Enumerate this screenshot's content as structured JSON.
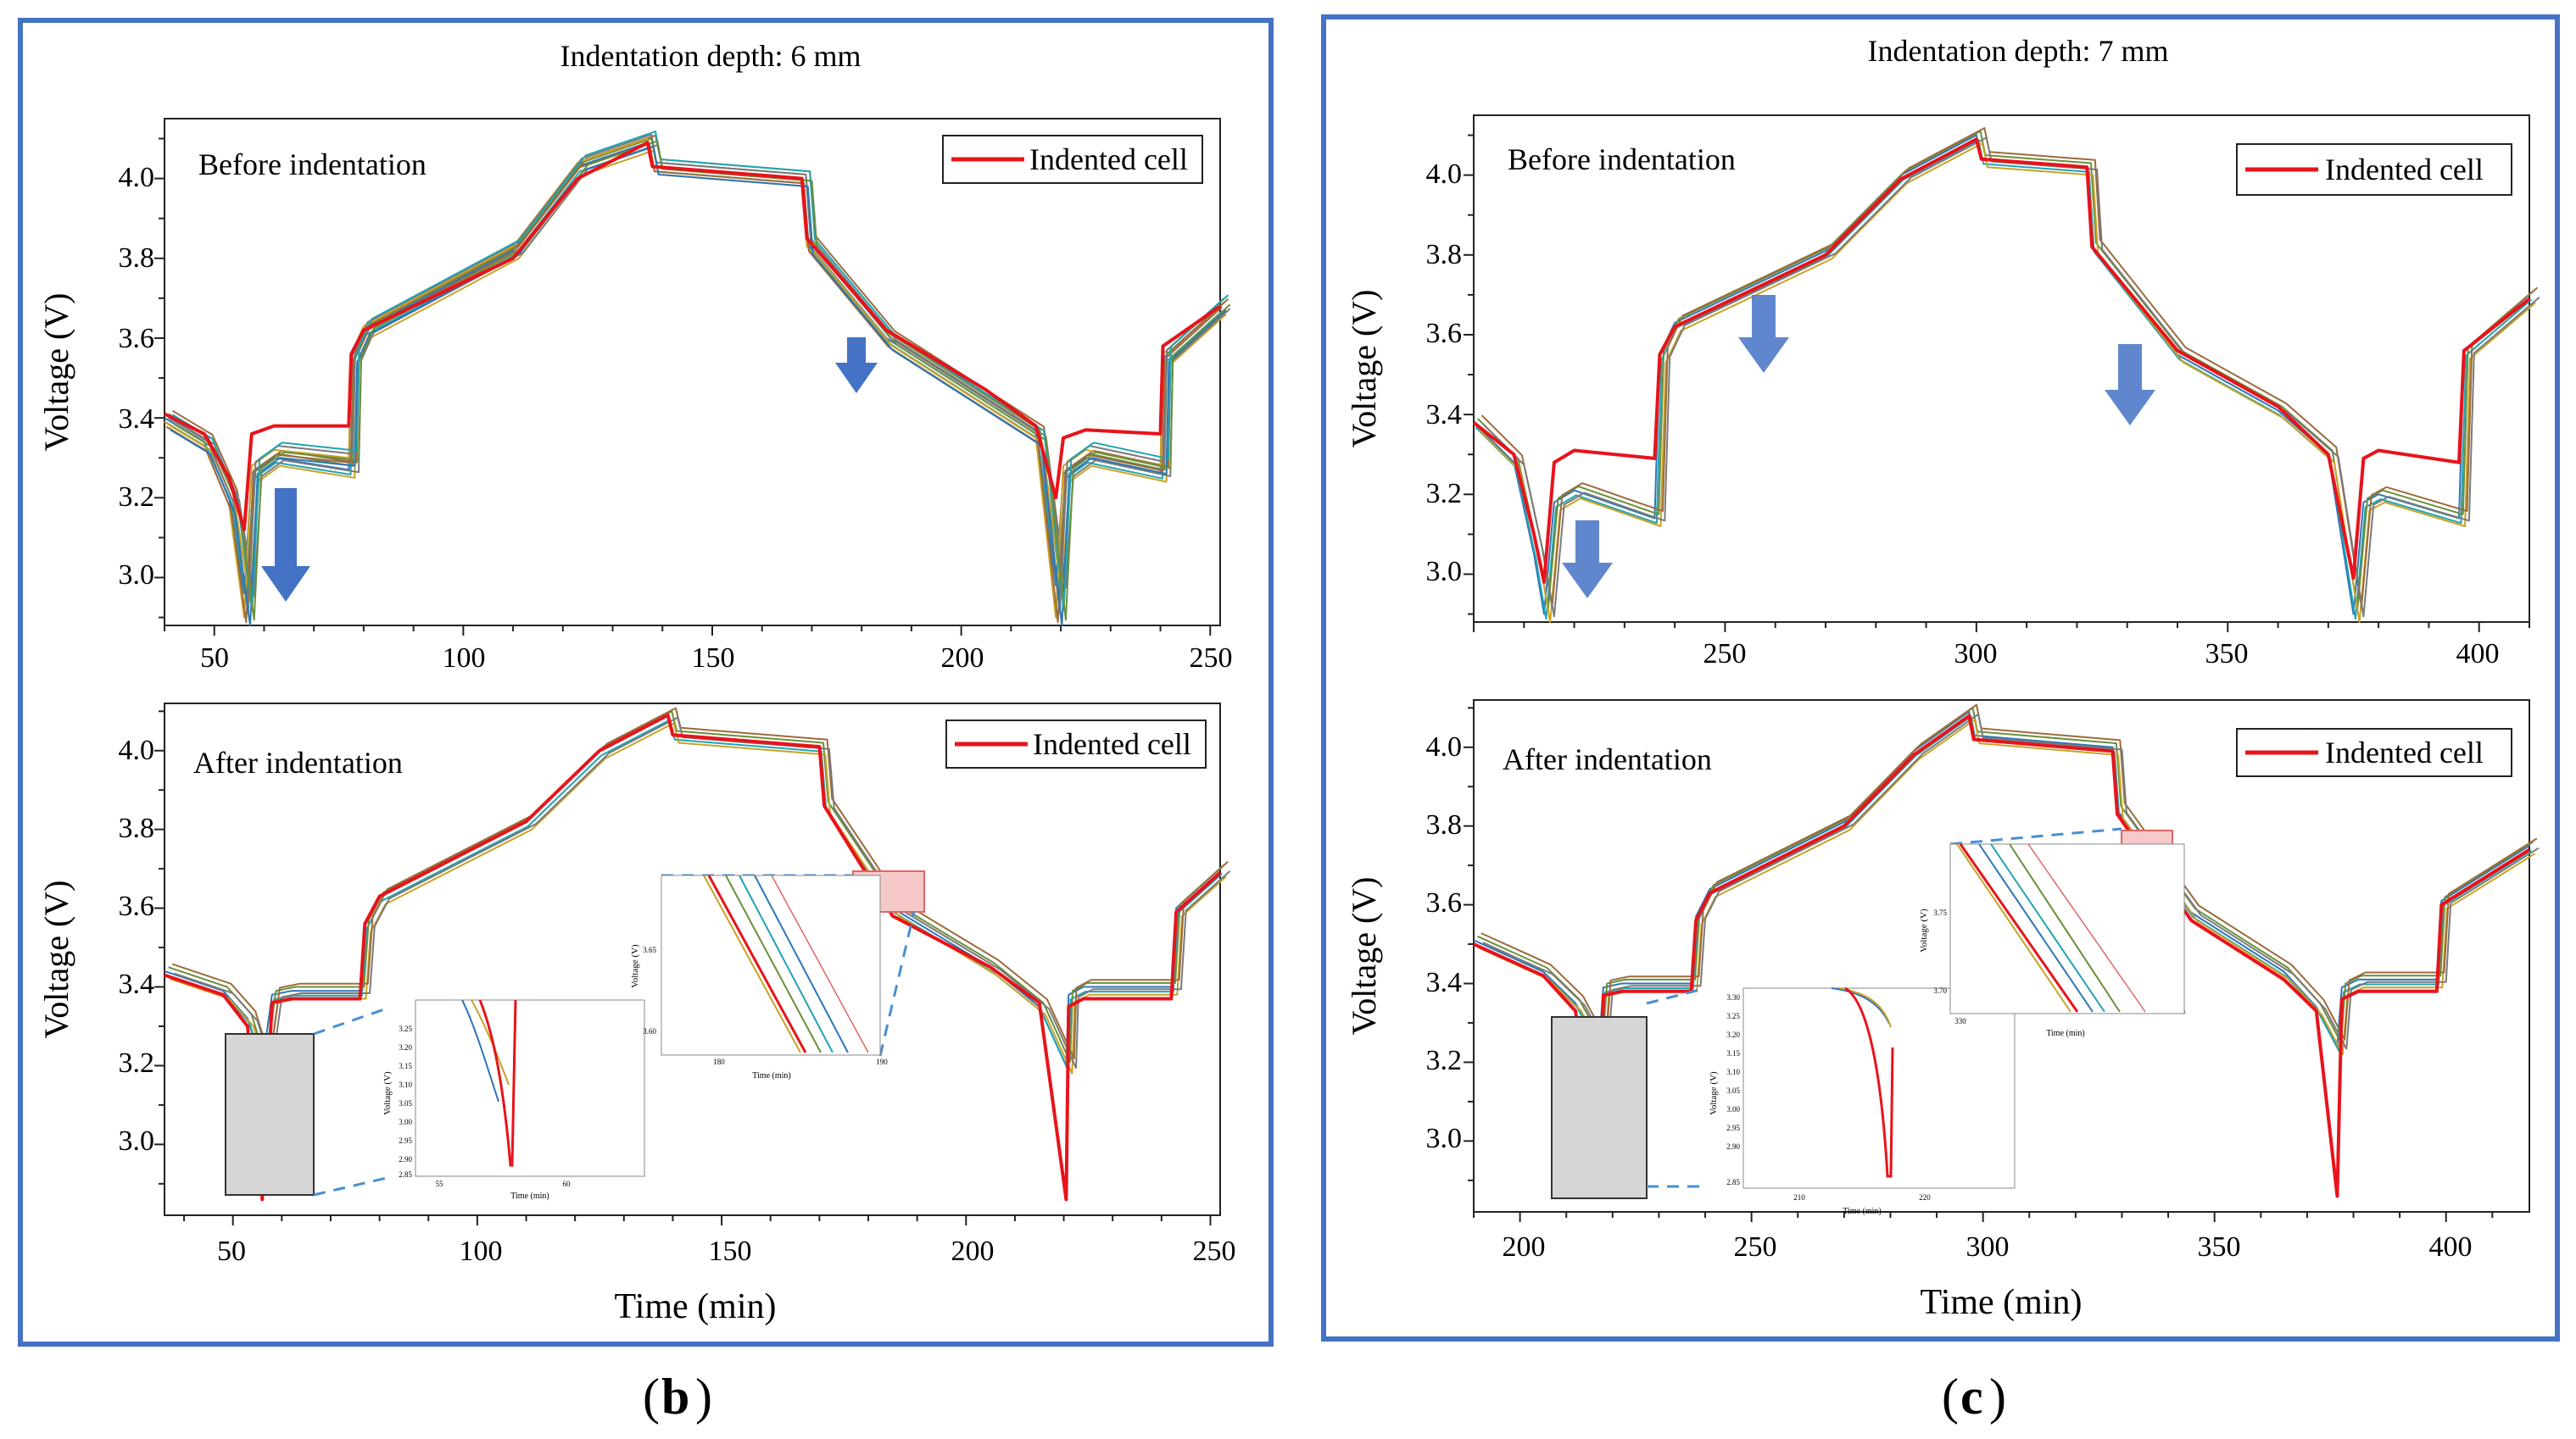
{
  "figure": {
    "series_colors": [
      "#2e75b6",
      "#21a3b3",
      "#6a8f3a",
      "#c9a227",
      "#9c6b3a",
      "#7a7a7a"
    ],
    "indented_color": "#e8131b",
    "panel_border_color": "#4472c4",
    "arrow_color": "#4472c4",
    "inset_box_gray": "#d6d6d6",
    "inset_box_red": "#f6c9c9"
  },
  "panels": [
    {
      "id": "b",
      "title": "Indentation depth: 6 mm",
      "label_open": "(",
      "label_letter": "b",
      "label_close": ")",
      "xlabel": "Time (min)",
      "charts": [
        {
          "annotation": "Before indentation",
          "legend": "Indented cell",
          "ylabel": "Voltage (V)",
          "xticks": [
            "50",
            "100",
            "150",
            "200",
            "250"
          ],
          "yticks": [
            "3.0",
            "3.2",
            "3.4",
            "3.6",
            "3.8",
            "4.0"
          ]
        },
        {
          "annotation": "After indentation",
          "legend": "Indented cell",
          "ylabel": "Voltage (V)",
          "xticks": [
            "50",
            "100",
            "150",
            "200",
            "250"
          ],
          "yticks": [
            "3.0",
            "3.2",
            "3.4",
            "3.6",
            "3.8",
            "4.0"
          ],
          "inset1": {
            "ylabel": "Voltage (V)",
            "xlabel": "Time (min)",
            "yticks": [
              "3.25",
              "3.20",
              "3.15",
              "3.10",
              "3.05",
              "3.00",
              "2.95",
              "2.90",
              "2.85"
            ],
            "xticks": [
              "55",
              "60"
            ]
          },
          "inset2": {
            "ylabel": "Voltage (V)",
            "xlabel": "Time (min)",
            "yticks": [
              "3.65",
              "3.60"
            ],
            "xticks": [
              "180",
              "190"
            ]
          }
        }
      ]
    },
    {
      "id": "c",
      "title": "Indentation depth: 7 mm",
      "label_open": "(",
      "label_letter": "c",
      "label_close": ")",
      "xlabel": "Time (min)",
      "charts": [
        {
          "annotation": "Before indentation",
          "legend": "Indented cell",
          "ylabel": "Voltage (V)",
          "xticks": [
            "250",
            "300",
            "350",
            "400"
          ],
          "yticks": [
            "3.0",
            "3.2",
            "3.4",
            "3.6",
            "3.8",
            "4.0"
          ]
        },
        {
          "annotation": "After indentation",
          "legend": "Indented cell",
          "ylabel": "Voltage (V)",
          "xticks": [
            "200",
            "250",
            "300",
            "350",
            "400"
          ],
          "yticks": [
            "3.0",
            "3.2",
            "3.4",
            "3.6",
            "3.8",
            "4.0"
          ],
          "inset1": {
            "ylabel": "Voltage (V)",
            "xlabel": "Time (min)",
            "yticks": [
              "3.30",
              "3.25",
              "3.20",
              "3.15",
              "3.10",
              "3.05",
              "3.00",
              "2.95",
              "2.90",
              "2.85"
            ],
            "xticks": [
              "210",
              "220"
            ]
          },
          "inset2": {
            "ylabel": "Voltage (V)",
            "xlabel": "Time (min)",
            "yticks": [
              "3.75",
              "3.70"
            ],
            "xticks": [
              "330"
            ]
          }
        }
      ]
    }
  ],
  "chart_data": [
    {
      "type": "line",
      "panel": "b",
      "subplot": "Before indentation",
      "title": "Indentation depth: 6 mm",
      "xlabel": "Time (min)",
      "ylabel": "Voltage (V)",
      "xlim": [
        40,
        252
      ],
      "ylim": [
        2.88,
        4.15
      ],
      "legend": [
        "Indented cell"
      ],
      "indented_cell": {
        "x": [
          40,
          48,
          53,
          56,
          57.5,
          62,
          77,
          77.5,
          80,
          110,
          123,
          137,
          138,
          168,
          169,
          185,
          205,
          215,
          219,
          220.5,
          225,
          240,
          240.5,
          252
        ],
        "y": [
          3.41,
          3.36,
          3.25,
          3.12,
          3.36,
          3.38,
          3.38,
          3.56,
          3.62,
          3.8,
          4.0,
          4.09,
          4.03,
          4.0,
          3.85,
          3.62,
          3.47,
          3.38,
          3.2,
          3.35,
          3.37,
          3.36,
          3.58,
          3.68
        ]
      },
      "healthy_cells": [
        {
          "x": [
            40,
            48,
            53,
            56,
            57.5,
            62,
            77,
            77.5,
            80,
            110,
            123,
            137,
            138,
            168,
            169,
            185,
            205,
            215,
            219,
            220.5,
            225,
            240,
            240.5,
            252
          ],
          "y": [
            3.4,
            3.34,
            3.2,
            2.96,
            3.26,
            3.3,
            3.27,
            3.55,
            3.62,
            3.82,
            4.03,
            4.09,
            4.03,
            4.0,
            3.84,
            3.6,
            3.44,
            3.36,
            2.98,
            3.26,
            3.3,
            3.26,
            3.55,
            3.68
          ]
        },
        {
          "x": [
            40,
            48,
            53,
            56,
            57.5,
            62,
            77,
            77.5,
            80,
            110,
            123,
            137,
            138,
            168,
            169,
            185,
            205,
            215,
            219,
            220.5,
            225,
            240,
            240.5,
            252
          ],
          "y": [
            3.39,
            3.33,
            3.18,
            2.9,
            3.28,
            3.32,
            3.3,
            3.56,
            3.63,
            3.83,
            4.04,
            4.1,
            4.03,
            4.0,
            3.83,
            3.59,
            3.43,
            3.35,
            2.9,
            3.28,
            3.32,
            3.28,
            3.56,
            3.69
          ]
        }
      ]
    },
    {
      "type": "line",
      "panel": "b",
      "subplot": "After indentation",
      "title": "Indentation depth: 6 mm",
      "xlabel": "Time (min)",
      "ylabel": "Voltage (V)",
      "xlim": [
        36,
        252
      ],
      "ylim": [
        2.82,
        4.12
      ],
      "legend": [
        "Indented cell"
      ],
      "indented_cell": {
        "x": [
          36,
          48,
          53,
          56,
          58,
          62,
          76,
          77,
          80,
          110,
          125,
          139,
          140,
          170,
          171,
          185,
          205,
          215,
          220.5,
          221,
          224,
          242,
          243,
          252
        ],
        "y": [
          3.43,
          3.38,
          3.3,
          2.86,
          3.36,
          3.37,
          3.37,
          3.56,
          3.63,
          3.82,
          4.0,
          4.09,
          4.04,
          4.01,
          3.86,
          3.58,
          3.45,
          3.36,
          2.86,
          3.35,
          3.37,
          3.37,
          3.59,
          3.69
        ]
      },
      "healthy_cells": [
        {
          "x": [
            36,
            48,
            53,
            56,
            58,
            62,
            76,
            77,
            80,
            110,
            125,
            139,
            140,
            170,
            171,
            185,
            205,
            215,
            220.5,
            221,
            224,
            242,
            243,
            252
          ],
          "y": [
            3.44,
            3.39,
            3.32,
            3.2,
            3.38,
            3.39,
            3.39,
            3.56,
            3.63,
            3.82,
            4.0,
            4.09,
            4.04,
            4.01,
            3.86,
            3.6,
            3.45,
            3.35,
            3.2,
            3.38,
            3.4,
            3.4,
            3.6,
            3.7
          ]
        }
      ]
    },
    {
      "type": "line",
      "panel": "c",
      "subplot": "Before indentation",
      "title": "Indentation depth: 7 mm",
      "xlabel": "Time (min)",
      "ylabel": "Voltage (V)",
      "xlim": [
        200,
        410
      ],
      "ylim": [
        2.88,
        4.15
      ],
      "legend": [
        "Indented cell"
      ],
      "indented_cell": {
        "x": [
          200,
          208,
          212,
          214,
          216,
          220,
          236,
          237,
          240,
          270,
          285,
          300,
          301,
          322,
          323,
          340,
          360,
          370,
          375,
          377,
          380,
          396,
          397,
          410
        ],
        "y": [
          3.38,
          3.3,
          3.1,
          2.98,
          3.28,
          3.31,
          3.29,
          3.55,
          3.62,
          3.8,
          3.99,
          4.09,
          4.04,
          4.02,
          3.82,
          3.56,
          3.42,
          3.3,
          2.99,
          3.29,
          3.31,
          3.28,
          3.56,
          3.69
        ]
      },
      "healthy_cells": [
        {
          "x": [
            200,
            208,
            212,
            214,
            216,
            220,
            236,
            237,
            240,
            270,
            285,
            300,
            301,
            322,
            323,
            340,
            360,
            370,
            375,
            377,
            380,
            396,
            397,
            410
          ],
          "y": [
            3.38,
            3.28,
            3.05,
            2.9,
            3.18,
            3.21,
            3.14,
            3.55,
            3.63,
            3.81,
            4.0,
            4.1,
            4.04,
            4.02,
            3.82,
            3.55,
            3.41,
            3.3,
            2.9,
            3.18,
            3.2,
            3.14,
            3.56,
            3.7
          ]
        }
      ]
    },
    {
      "type": "line",
      "panel": "c",
      "subplot": "After indentation",
      "title": "Indentation depth: 7 mm",
      "xlabel": "Time (min)",
      "ylabel": "Voltage (V)",
      "xlim": [
        190,
        418
      ],
      "ylim": [
        2.82,
        4.12
      ],
      "legend": [
        "Indented cell"
      ],
      "indented_cell": {
        "x": [
          190,
          205,
          212,
          217,
          218,
          222,
          237,
          238,
          241,
          270,
          285,
          297,
          298,
          328,
          329,
          345,
          365,
          372,
          376.5,
          377.5,
          381,
          398,
          399,
          418
        ],
        "y": [
          3.5,
          3.42,
          3.33,
          2.86,
          3.37,
          3.38,
          3.38,
          3.56,
          3.63,
          3.8,
          3.98,
          4.08,
          4.02,
          3.99,
          3.83,
          3.56,
          3.41,
          3.33,
          2.86,
          3.36,
          3.38,
          3.38,
          3.6,
          3.74
        ]
      },
      "healthy_cells": [
        {
          "x": [
            190,
            205,
            212,
            217,
            218,
            222,
            237,
            238,
            241,
            270,
            285,
            297,
            298,
            328,
            329,
            345,
            365,
            372,
            376.5,
            377.5,
            381,
            398,
            399,
            418
          ],
          "y": [
            3.51,
            3.43,
            3.35,
            3.24,
            3.39,
            3.4,
            3.4,
            3.57,
            3.64,
            3.81,
            3.99,
            4.09,
            4.03,
            4.0,
            3.84,
            3.58,
            3.43,
            3.34,
            3.24,
            3.39,
            3.41,
            3.41,
            3.61,
            3.75
          ]
        }
      ]
    }
  ]
}
